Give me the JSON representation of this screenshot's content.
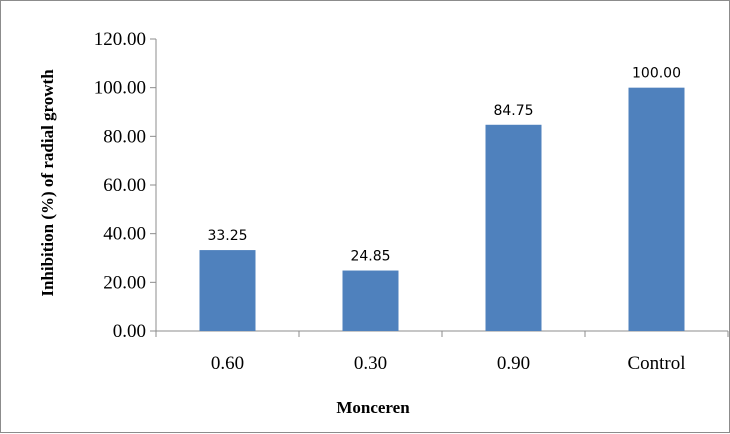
{
  "chart_data": {
    "type": "bar",
    "categories": [
      "0.60",
      "0.30",
      "0.90",
      "Control"
    ],
    "values": [
      33.25,
      24.85,
      84.75,
      100.0
    ],
    "data_labels": [
      "33.25",
      "24.85",
      "84.75",
      "100.00"
    ],
    "title": "",
    "xlabel": "Monceren",
    "ylabel": "Inhibition (%) of radial growth",
    "ylim": [
      0,
      120
    ],
    "ytick_step": 20,
    "ytick_labels": [
      "0.00",
      "20.00",
      "40.00",
      "60.00",
      "80.00",
      "100.00",
      "120.00"
    ],
    "grid": false,
    "legend": "none",
    "bar_color": "#4f81bd",
    "axis_color": "#8c8c8c"
  }
}
